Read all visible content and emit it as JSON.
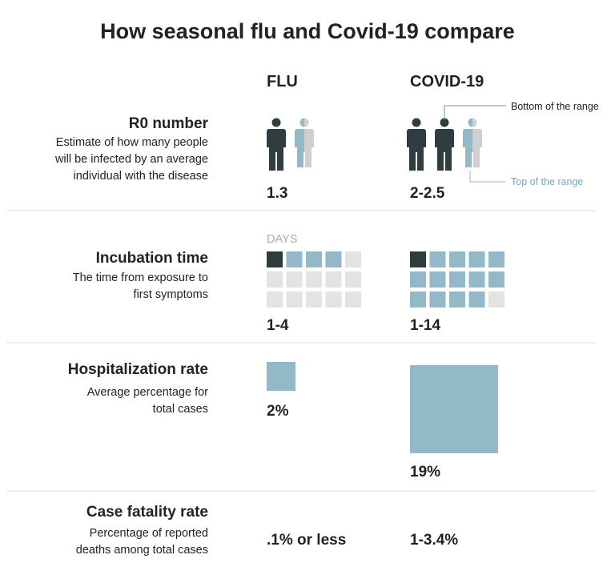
{
  "header": {
    "title": "How seasonal flu and Covid-19 compare"
  },
  "columns": [
    "FLU",
    "COVID-19"
  ],
  "annotations": {
    "bottom_of_range": "Bottom of the range",
    "top_of_range": "Top of the range",
    "days": "DAYS"
  },
  "rows": [
    {
      "label": "R0 number",
      "description": [
        "Estimate of how many people",
        "will be infected by an average",
        "individual with the disease"
      ],
      "flu": "1.3",
      "covid": "2-2.5"
    },
    {
      "label": "Incubation time",
      "description": [
        "The time from exposure to",
        "first symptoms"
      ],
      "flu": "1-4",
      "covid": "1-14"
    },
    {
      "label": "Hospitalization rate",
      "description": [
        "Average percentage for",
        "total cases"
      ],
      "flu": "2%",
      "covid": "19%"
    },
    {
      "label": "Case fatality rate",
      "description": [
        "Percentage of reported",
        "deaths among total cases"
      ],
      "flu": ".1% or less",
      "covid": "1-3.4%"
    }
  ]
}
